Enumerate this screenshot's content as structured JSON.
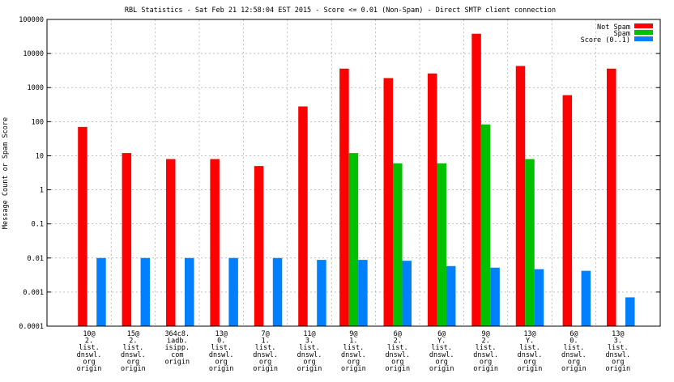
{
  "chart_data": {
    "type": "bar",
    "title": "RBL Statistics - Sat Feb 21 12:58:04 EST 2015 - Score <= 0.01 (Non-Spam) - Direct SMTP client connection",
    "xlabel": "",
    "ylabel": "Message Count or Spam Score",
    "yscale": "log",
    "ylim": [
      0.0001,
      100000
    ],
    "yticks": [
      "0.0001",
      "0.001",
      "0.01",
      "0.1",
      "1",
      "10",
      "100",
      "1000",
      "10000",
      "100000"
    ],
    "grid": true,
    "legend_position": "top-right",
    "categories": [
      [
        "10@",
        "2.",
        "list.",
        "dnswl.",
        "org",
        "origin"
      ],
      [
        "15@",
        "2.",
        "list.",
        "dnswl.",
        "org",
        "origin"
      ],
      [
        "364c8.",
        "iadb.",
        "isipp.",
        "com",
        "origin"
      ],
      [
        "13@",
        "0.",
        "list.",
        "dnswl.",
        "org",
        "origin"
      ],
      [
        "7@",
        "1.",
        "list.",
        "dnswl.",
        "org",
        "origin"
      ],
      [
        "11@",
        "3.",
        "list.",
        "dnswl.",
        "org",
        "origin"
      ],
      [
        "9@",
        "1.",
        "list.",
        "dnswl.",
        "org",
        "origin"
      ],
      [
        "6@",
        "2.",
        "list.",
        "dnswl.",
        "org",
        "origin"
      ],
      [
        "6@",
        "Y.",
        "list.",
        "dnswl.",
        "org",
        "origin"
      ],
      [
        "9@",
        "2.",
        "list.",
        "dnswl.",
        "org",
        "origin"
      ],
      [
        "13@",
        "Y.",
        "list.",
        "dnswl.",
        "org",
        "origin"
      ],
      [
        "6@",
        "0.",
        "list.",
        "dnswl.",
        "org",
        "origin"
      ],
      [
        "13@",
        "3.",
        "list.",
        "dnswl.",
        "org",
        "origin"
      ]
    ],
    "series": [
      {
        "name": "Not Spam",
        "color": "#ff0000",
        "values": [
          70,
          12,
          8,
          8,
          5,
          280,
          3600,
          1900,
          2600,
          38000,
          4300,
          600,
          3600
        ]
      },
      {
        "name": "Spam",
        "color": "#00c000",
        "values": [
          null,
          null,
          null,
          null,
          null,
          null,
          12,
          6,
          6,
          83,
          8,
          null,
          null
        ]
      },
      {
        "name": "Score (0..1)",
        "color": "#0080ff",
        "values": [
          0.01,
          0.01,
          0.01,
          0.01,
          0.01,
          0.0088,
          0.0088,
          0.0083,
          0.0058,
          0.0052,
          0.0047,
          0.0042,
          0.0007
        ]
      }
    ]
  }
}
